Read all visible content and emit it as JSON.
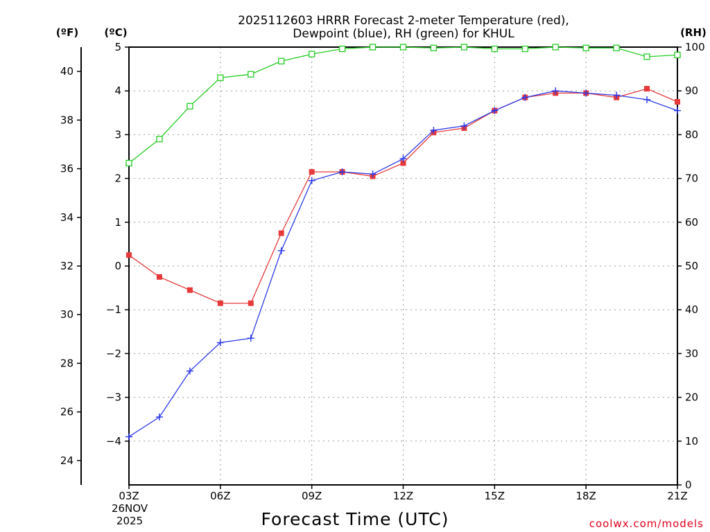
{
  "chart_data": {
    "type": "line",
    "title_line1": "2025112603 HRRR Forecast 2-meter Temperature (red),",
    "title_line2": "Dewpoint (blue), RH (green) for KHUL",
    "xlabel": "Forecast Time (UTC)",
    "credit": "coolwx.com/models",
    "unit_labels": {
      "fahrenheit": "(ºF)",
      "celsius": "(ºC)",
      "rh": "(RH)"
    },
    "x_hours": [
      3,
      4,
      5,
      6,
      7,
      8,
      9,
      10,
      11,
      12,
      13,
      14,
      15,
      16,
      17,
      18,
      19,
      20,
      21
    ],
    "x_tick_hours": [
      3,
      6,
      9,
      12,
      15,
      18,
      21
    ],
    "x_tick_labels": [
      "03Z",
      "06Z",
      "09Z",
      "12Z",
      "15Z",
      "18Z",
      "21Z"
    ],
    "x_date_line1": "26NOV",
    "x_date_line2": "2025",
    "celsius_axis": {
      "min": -5.0,
      "max": 5.0,
      "ticks": [
        -4,
        -3,
        -2,
        -1,
        0,
        1,
        2,
        3,
        4,
        5
      ]
    },
    "rh_axis": {
      "min": 0,
      "max": 100,
      "ticks": [
        0,
        10,
        20,
        30,
        40,
        50,
        60,
        70,
        80,
        90,
        100
      ]
    },
    "fahrenheit_axis": {
      "ticks": [
        24,
        26,
        28,
        30,
        32,
        34,
        36,
        38,
        40
      ]
    },
    "series": [
      {
        "name": "Temperature",
        "axis": "celsius",
        "color": "#e8393a",
        "marker": "filled-square",
        "values": [
          0.25,
          -0.25,
          -0.55,
          -0.85,
          -0.85,
          0.75,
          2.15,
          2.15,
          2.05,
          2.35,
          3.05,
          3.15,
          3.55,
          3.85,
          3.95,
          3.95,
          3.85,
          4.05,
          3.75
        ]
      },
      {
        "name": "Dewpoint",
        "axis": "celsius",
        "color": "#2d3be8",
        "marker": "plus",
        "values": [
          -3.9,
          -3.45,
          -2.4,
          -1.75,
          -1.65,
          0.35,
          1.95,
          2.15,
          2.1,
          2.45,
          3.1,
          3.2,
          3.55,
          3.85,
          4.0,
          3.95,
          3.9,
          3.8,
          3.55
        ]
      },
      {
        "name": "RH",
        "axis": "rh",
        "color": "#22cc22",
        "marker": "open-square",
        "values": [
          73.5,
          79,
          86.5,
          93,
          93.8,
          96.8,
          98.4,
          99.6,
          100,
          100,
          99.8,
          100,
          99.6,
          99.6,
          100,
          99.8,
          99.8,
          97.8,
          98.2
        ]
      }
    ]
  }
}
